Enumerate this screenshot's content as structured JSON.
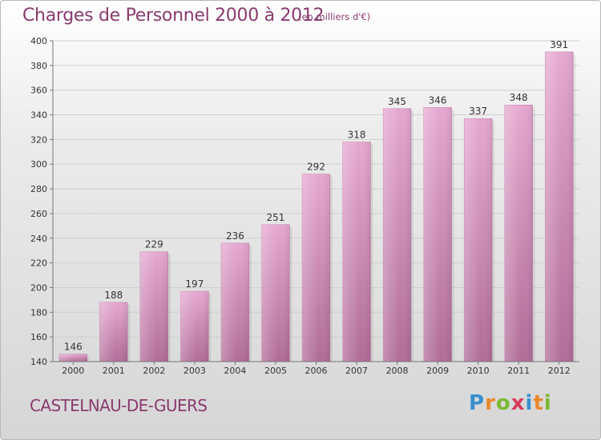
{
  "title": "Charges de Personnel 2000 à 2012",
  "subtitle": "(en milliers d'€)",
  "commune": "CASTELNAU-DE-GUERS",
  "brand": {
    "letters": [
      "P",
      "r",
      "o",
      "x",
      "i",
      "t",
      "i"
    ],
    "colors": [
      "#3a8fd0",
      "#e8882c",
      "#7cb934",
      "#d63a5a",
      "#3a8fd0",
      "#e8882c",
      "#7cb934"
    ]
  },
  "colors": {
    "bar": "#d98cbc",
    "bar_dark": "#b8709c",
    "text": "#8a3b6e",
    "grid": "#cfcfcf"
  },
  "chart_data": {
    "type": "bar",
    "title": "Charges de Personnel 2000 à 2012",
    "subtitle": "(en milliers d'€)",
    "xlabel": "",
    "ylabel": "",
    "categories": [
      "2000",
      "2001",
      "2002",
      "2003",
      "2004",
      "2005",
      "2006",
      "2007",
      "2008",
      "2009",
      "2010",
      "2011",
      "2012"
    ],
    "values": [
      146,
      188,
      229,
      197,
      236,
      251,
      292,
      318,
      345,
      346,
      337,
      348,
      391
    ],
    "ylim": [
      140,
      400
    ],
    "yticks": [
      140,
      160,
      180,
      200,
      220,
      240,
      260,
      280,
      300,
      320,
      340,
      360,
      380,
      400
    ],
    "grid": true
  }
}
